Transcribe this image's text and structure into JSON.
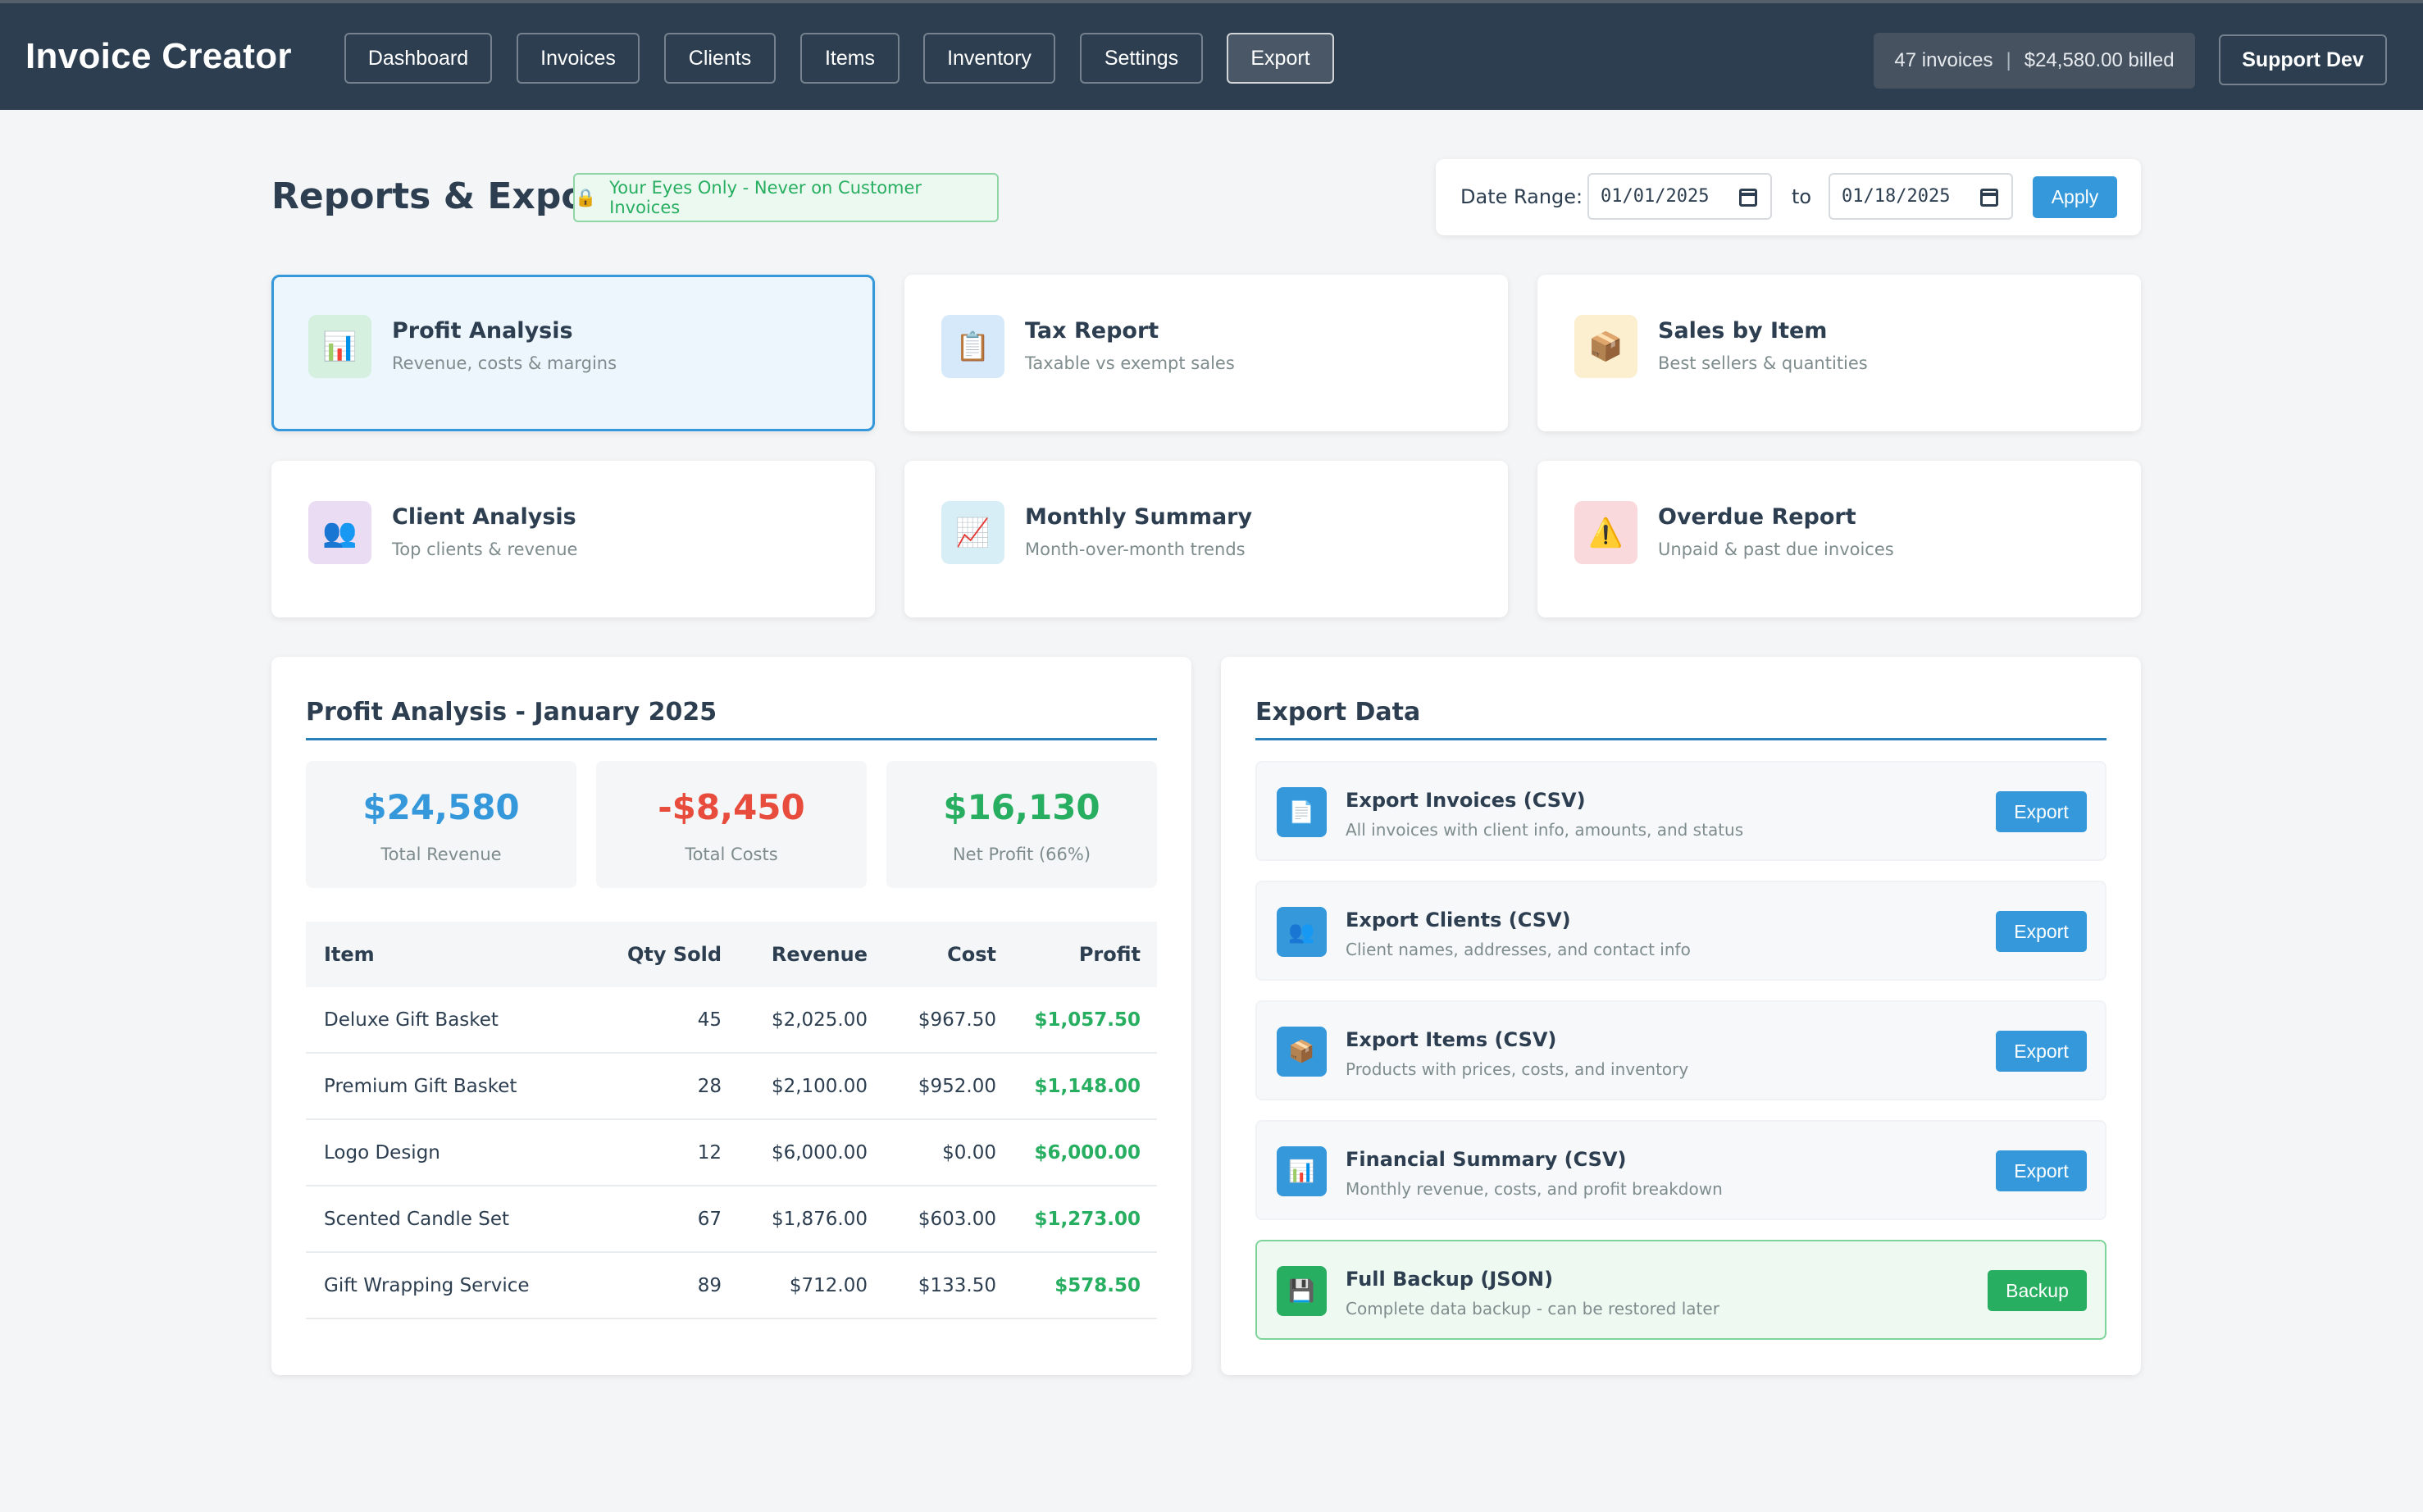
{
  "app": {
    "title": "Invoice Creator"
  },
  "nav": [
    {
      "label": "Dashboard"
    },
    {
      "label": "Invoices"
    },
    {
      "label": "Clients"
    },
    {
      "label": "Items"
    },
    {
      "label": "Inventory"
    },
    {
      "label": "Settings"
    },
    {
      "label": "Export",
      "active": true
    }
  ],
  "header_stats": {
    "invoices": "47 invoices",
    "separator": "|",
    "billed": "$24,580.00 billed"
  },
  "support_label": "Support Dev",
  "page": {
    "title": "Reports & Export",
    "badge_icon": "🔒",
    "badge_text": "Your Eyes Only - Never on Customer Invoices"
  },
  "date_range": {
    "label": "Date Range:",
    "from": "01/01/2025",
    "to_label": "to",
    "to": "01/18/2025",
    "apply_label": "Apply"
  },
  "reports": [
    {
      "title": "Profit Analysis",
      "subtitle": "Revenue, costs & margins",
      "icon": "📊",
      "icon_name": "bar-chart-icon",
      "icon_bg": "#d5f0df",
      "selected": true
    },
    {
      "title": "Tax Report",
      "subtitle": "Taxable vs exempt sales",
      "icon": "📋",
      "icon_name": "clipboard-icon",
      "icon_bg": "#d6e9fa"
    },
    {
      "title": "Sales by Item",
      "subtitle": "Best sellers & quantities",
      "icon": "📦",
      "icon_name": "package-icon",
      "icon_bg": "#fcefd0"
    },
    {
      "title": "Client Analysis",
      "subtitle": "Top clients & revenue",
      "icon": "👥",
      "icon_name": "users-icon",
      "icon_bg": "#e9dcf3"
    },
    {
      "title": "Monthly Summary",
      "subtitle": "Month-over-month trends",
      "icon": "📈",
      "icon_name": "trend-chart-icon",
      "icon_bg": "#d8eef6"
    },
    {
      "title": "Overdue Report",
      "subtitle": "Unpaid & past due invoices",
      "icon": "⚠️",
      "icon_name": "warning-icon",
      "icon_bg": "#fad9dc"
    }
  ],
  "profit": {
    "title": "Profit Analysis - January 2025",
    "stats": [
      {
        "value": "$24,580",
        "label": "Total Revenue",
        "color": "#3498db"
      },
      {
        "value": "-$8,450",
        "label": "Total Costs",
        "color": "#e74c3c"
      },
      {
        "value": "$16,130",
        "label": "Net Profit (66%)",
        "color": "#27ae60"
      }
    ],
    "columns": [
      "Item",
      "Qty Sold",
      "Revenue",
      "Cost",
      "Profit"
    ],
    "rows": [
      {
        "item": "Deluxe Gift Basket",
        "qty": "45",
        "revenue": "$2,025.00",
        "cost": "$967.50",
        "profit": "$1,057.50"
      },
      {
        "item": "Premium Gift Basket",
        "qty": "28",
        "revenue": "$2,100.00",
        "cost": "$952.00",
        "profit": "$1,148.00"
      },
      {
        "item": "Logo Design",
        "qty": "12",
        "revenue": "$6,000.00",
        "cost": "$0.00",
        "profit": "$6,000.00"
      },
      {
        "item": "Scented Candle Set",
        "qty": "67",
        "revenue": "$1,876.00",
        "cost": "$603.00",
        "profit": "$1,273.00"
      },
      {
        "item": "Gift Wrapping Service",
        "qty": "89",
        "revenue": "$712.00",
        "cost": "$133.50",
        "profit": "$578.50"
      }
    ]
  },
  "export": {
    "title": "Export Data",
    "items": [
      {
        "title": "Export Invoices (CSV)",
        "subtitle": "All invoices with client info, amounts, and status",
        "icon": "📄",
        "icon_name": "document-icon",
        "button": "Export"
      },
      {
        "title": "Export Clients (CSV)",
        "subtitle": "Client names, addresses, and contact info",
        "icon": "👥",
        "icon_name": "users-icon",
        "button": "Export"
      },
      {
        "title": "Export Items (CSV)",
        "subtitle": "Products with prices, costs, and inventory",
        "icon": "📦",
        "icon_name": "package-icon",
        "button": "Export"
      },
      {
        "title": "Financial Summary (CSV)",
        "subtitle": "Monthly revenue, costs, and profit breakdown",
        "icon": "📊",
        "icon_name": "bar-chart-icon",
        "button": "Export"
      },
      {
        "title": "Full Backup (JSON)",
        "subtitle": "Complete data backup - can be restored later",
        "icon": "💾",
        "icon_name": "floppy-disk-icon",
        "button": "Backup",
        "backup": true
      }
    ]
  }
}
